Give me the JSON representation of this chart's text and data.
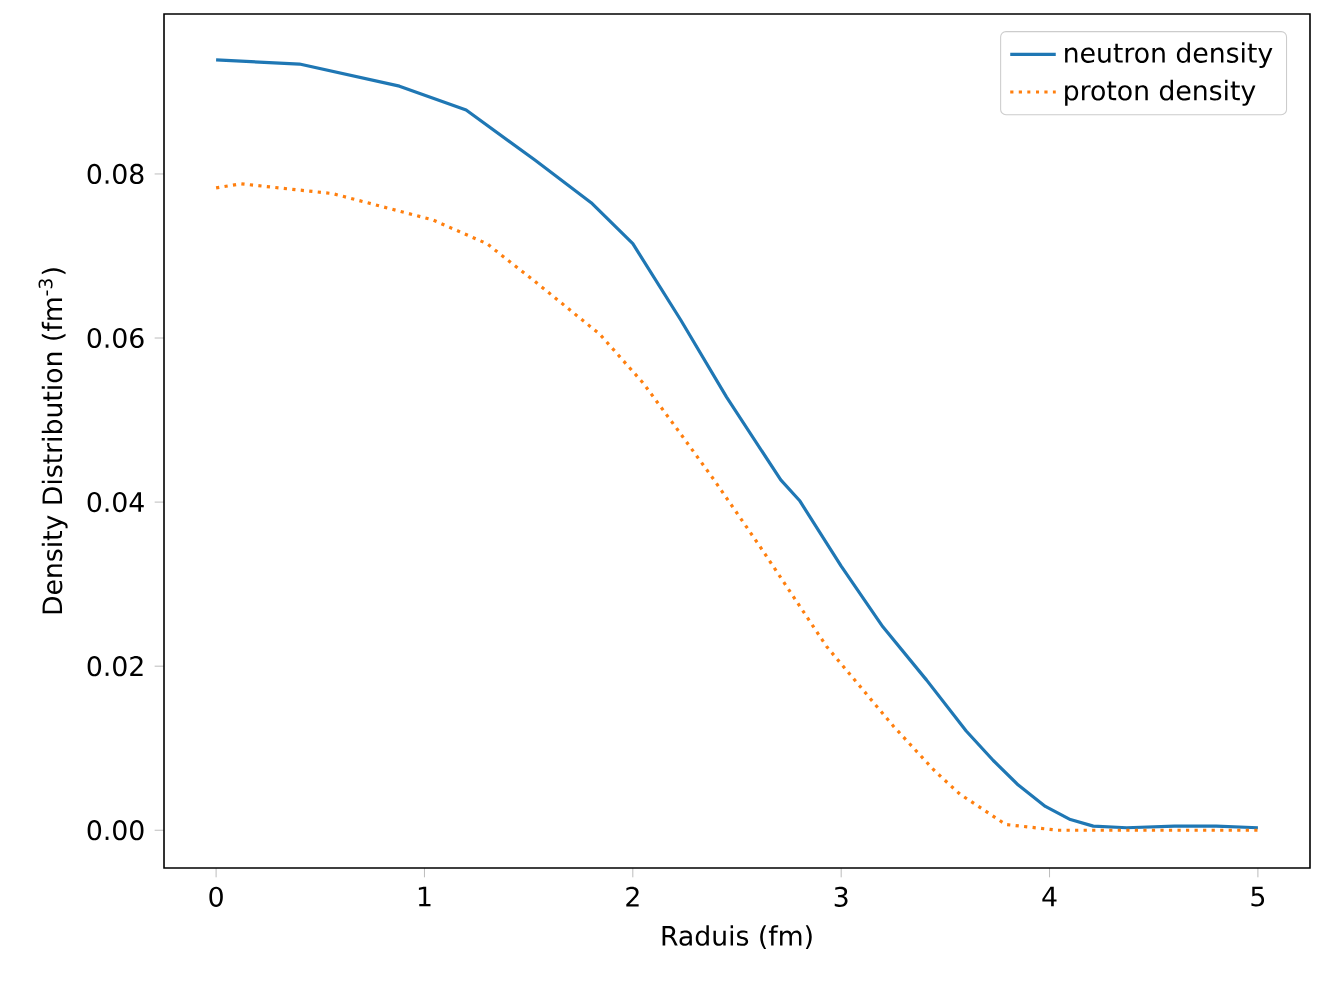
{
  "chart_data": {
    "type": "line",
    "xlabel": "Raduis (fm)",
    "ylabel": "Density Distribution (fm$^{-3}$)",
    "xlim": [
      -0.25,
      5.25
    ],
    "ylim": [
      -0.0046,
      0.0995
    ],
    "xticks": [
      0,
      1,
      2,
      3,
      4,
      5
    ],
    "yticks": [
      {
        "value": 0,
        "label": "0.00"
      },
      {
        "value": 0.02,
        "label": "0.02"
      },
      {
        "value": 0.04,
        "label": "0.04"
      },
      {
        "value": 0.06,
        "label": "0.06"
      },
      {
        "value": 0.08,
        "label": "0.08"
      }
    ],
    "legend": "top right",
    "grid": false,
    "series": [
      {
        "name": "neutron density",
        "color": "#1f77b4",
        "line_style": "solid",
        "x": [
          0,
          0.4,
          0.88,
          1.2,
          1.53,
          1.8,
          2.0,
          2.23,
          2.45,
          2.71,
          2.8,
          3.0,
          3.2,
          3.41,
          3.6,
          3.73,
          3.85,
          3.98,
          4.1,
          4.21,
          4.37,
          4.6,
          4.8,
          5.0
        ],
        "values": [
          0.0939,
          0.0934,
          0.0907,
          0.0878,
          0.0817,
          0.0765,
          0.0715,
          0.0622,
          0.0528,
          0.0427,
          0.0402,
          0.0322,
          0.0248,
          0.0183,
          0.0121,
          0.0085,
          0.0055,
          0.0029,
          0.0013,
          0.0005,
          0.0003,
          0.0005,
          0.0005,
          0.0003
        ]
      },
      {
        "name": "proton density",
        "color": "#ff7f0e",
        "line_style": "dotted",
        "x": [
          0,
          0.12,
          0.56,
          1.04,
          1.3,
          1.52,
          1.84,
          2.05,
          2.23,
          2.39,
          2.61,
          2.93,
          3.25,
          3.45,
          3.57,
          3.79,
          4.04,
          4.5,
          5.0
        ],
        "values": [
          0.0783,
          0.0788,
          0.0776,
          0.0744,
          0.0715,
          0.0671,
          0.0605,
          0.0545,
          0.0483,
          0.0427,
          0.0346,
          0.0224,
          0.0127,
          0.0072,
          0.0044,
          0.0007,
          0.0,
          0.0,
          0.0
        ]
      }
    ]
  }
}
